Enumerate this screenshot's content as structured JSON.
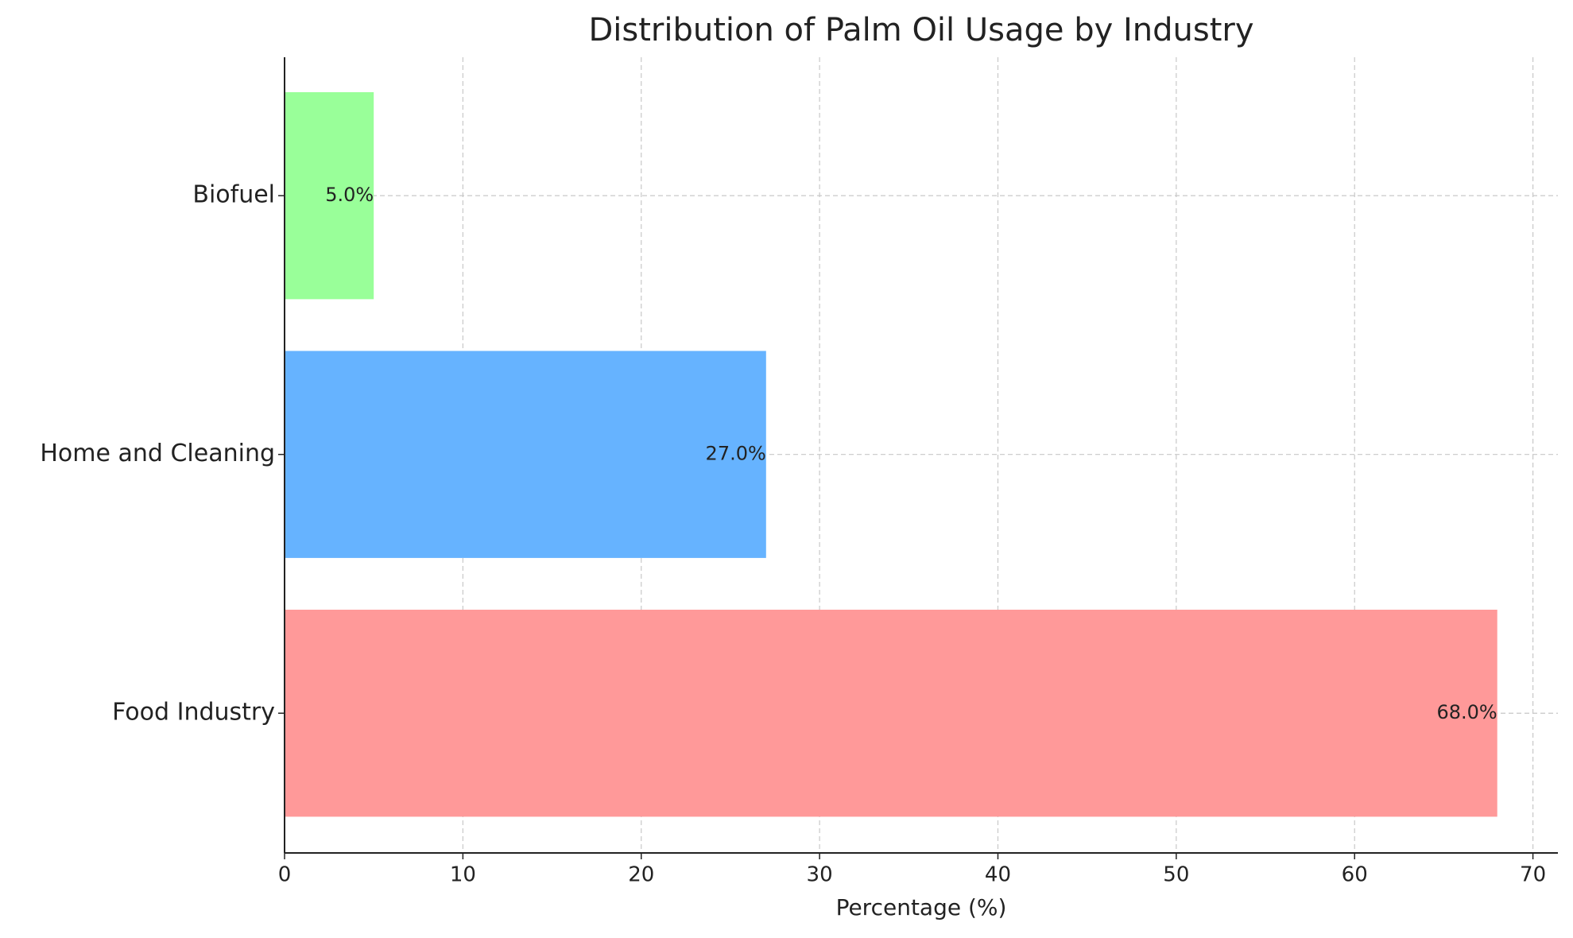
{
  "chart_data": {
    "type": "barh",
    "title": "Distribution of Palm Oil Usage by Industry",
    "xlabel": "Percentage (%)",
    "categories": [
      "Food Industry",
      "Home and Cleaning",
      "Biofuel"
    ],
    "values": [
      68,
      27,
      5
    ],
    "value_labels": [
      "68.0%",
      "27.0%",
      "5.0%"
    ],
    "colors": [
      "#ff9999",
      "#66b3ff",
      "#99ff99"
    ],
    "xlim": [
      0,
      71.4
    ],
    "xticks": [
      0,
      10,
      20,
      30,
      40,
      50,
      60,
      70
    ],
    "grid": true
  }
}
